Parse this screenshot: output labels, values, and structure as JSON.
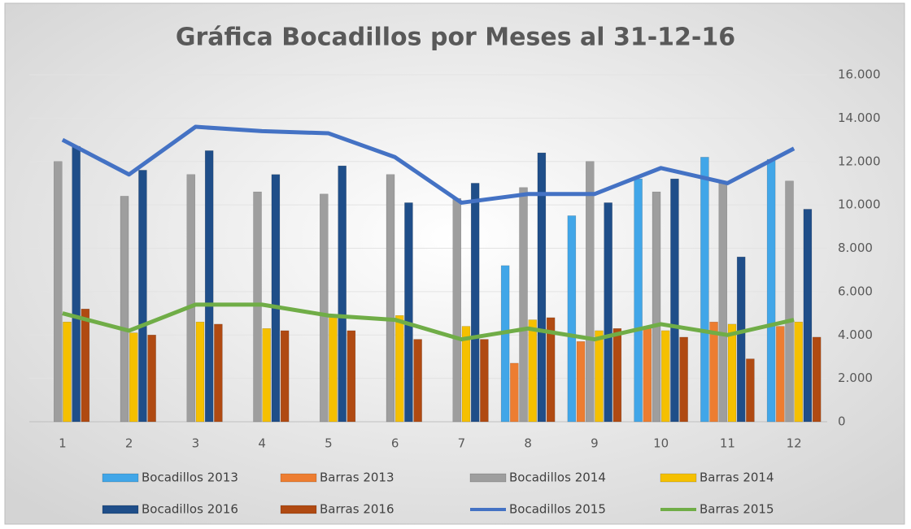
{
  "chart_data": {
    "type": "bar",
    "title": "Gráfica Bocadillos por Meses al 31-12-16",
    "categories": [
      "1",
      "2",
      "3",
      "4",
      "5",
      "6",
      "7",
      "8",
      "9",
      "10",
      "11",
      "12"
    ],
    "ylim": [
      0,
      16000
    ],
    "yticks": [
      0,
      {
        "value": 2000,
        "label": "2.000"
      },
      {
        "value": 4000,
        "label": "4.000"
      },
      {
        "value": 6000,
        "label": "6.000"
      },
      {
        "value": 8000,
        "label": "8.000"
      },
      {
        "value": 10000,
        "label": "10.000"
      },
      {
        "value": 12000,
        "label": "12.000"
      },
      {
        "value": 14000,
        "label": "14.000"
      },
      {
        "value": 16000,
        "label": "16.000"
      }
    ],
    "grid": true,
    "series": [
      {
        "name": "Bocadillos 2013",
        "type": "bar",
        "color": "#41a6e8",
        "values": [
          null,
          null,
          null,
          null,
          null,
          null,
          null,
          7200,
          9500,
          11200,
          12200,
          12100
        ]
      },
      {
        "name": "Barras 2013",
        "type": "bar",
        "color": "#ed7d31",
        "values": [
          null,
          null,
          null,
          null,
          null,
          null,
          null,
          2700,
          3700,
          4300,
          4600,
          4400
        ]
      },
      {
        "name": "Bocadillos 2014",
        "type": "bar",
        "color": "#9e9e9e",
        "values": [
          12000,
          10400,
          11400,
          10600,
          10500,
          11400,
          10300,
          10800,
          12000,
          10600,
          11000,
          11100
        ]
      },
      {
        "name": "Barras 2014",
        "type": "bar",
        "color": "#f5c000",
        "values": [
          4600,
          4100,
          4600,
          4300,
          4900,
          4900,
          4400,
          4700,
          4200,
          4200,
          4500,
          4600
        ]
      },
      {
        "name": "Bocadillos 2016",
        "type": "bar",
        "color": "#1f4e89",
        "values": [
          12700,
          11600,
          12500,
          11400,
          11800,
          10100,
          11000,
          12400,
          10100,
          11200,
          7600,
          9800
        ]
      },
      {
        "name": "Barras 2016",
        "type": "bar",
        "color": "#b04a12",
        "values": [
          5200,
          4000,
          4500,
          4200,
          4200,
          3800,
          3800,
          4800,
          4300,
          3900,
          2900,
          3900
        ]
      },
      {
        "name": "Bocadillos 2015",
        "type": "line",
        "color": "#4472c4",
        "values": [
          13000,
          11400,
          13600,
          13400,
          13300,
          12200,
          10100,
          10500,
          10500,
          11700,
          11000,
          12600
        ]
      },
      {
        "name": "Barras 2015",
        "type": "line",
        "color": "#70ad47",
        "values": [
          5000,
          4200,
          5400,
          5400,
          4900,
          4700,
          3800,
          4300,
          3800,
          4500,
          4000,
          4700
        ]
      }
    ]
  }
}
